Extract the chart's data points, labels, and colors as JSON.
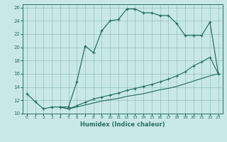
{
  "xlabel": "Humidex (Indice chaleur)",
  "bg_color": "#c8e8e8",
  "line_color": "#2a7060",
  "xlim_min": -0.5,
  "xlim_max": 23.5,
  "ylim_min": 10,
  "ylim_max": 26.5,
  "xticks": [
    0,
    1,
    2,
    3,
    4,
    5,
    6,
    7,
    8,
    9,
    10,
    11,
    12,
    13,
    14,
    15,
    16,
    17,
    18,
    19,
    20,
    21,
    22,
    23
  ],
  "yticks": [
    10,
    12,
    14,
    16,
    18,
    20,
    22,
    24,
    26
  ],
  "curve1_x": [
    0,
    1,
    2,
    3,
    4,
    5,
    6,
    7,
    8,
    9,
    10,
    11,
    12,
    13,
    14,
    15,
    16,
    17,
    18,
    19,
    20,
    21,
    22,
    23
  ],
  "curve1_y": [
    13.0,
    11.8,
    10.7,
    11.0,
    11.0,
    11.0,
    14.8,
    20.2,
    19.2,
    22.5,
    24.0,
    24.2,
    25.8,
    25.8,
    25.2,
    25.2,
    24.8,
    24.8,
    23.6,
    21.8,
    21.8,
    21.8,
    23.8,
    16.0
  ],
  "curve2_x": [
    4,
    5,
    6,
    7,
    8,
    9,
    10,
    11,
    12,
    13,
    14,
    15,
    16,
    17,
    18,
    19,
    20,
    21,
    22,
    23
  ],
  "curve2_y": [
    11.0,
    10.7,
    11.2,
    11.7,
    12.2,
    12.5,
    12.8,
    13.1,
    13.5,
    13.8,
    14.1,
    14.4,
    14.8,
    15.2,
    15.7,
    16.3,
    17.2,
    17.8,
    18.5,
    16.0
  ],
  "curve3_x": [
    4,
    5,
    6,
    7,
    8,
    9,
    10,
    11,
    12,
    13,
    14,
    15,
    16,
    17,
    18,
    19,
    20,
    21,
    22,
    23
  ],
  "curve3_y": [
    11.0,
    10.7,
    11.0,
    11.3,
    11.6,
    11.9,
    12.1,
    12.3,
    12.6,
    12.8,
    13.0,
    13.3,
    13.6,
    13.8,
    14.1,
    14.5,
    14.9,
    15.3,
    15.7,
    16.0
  ]
}
